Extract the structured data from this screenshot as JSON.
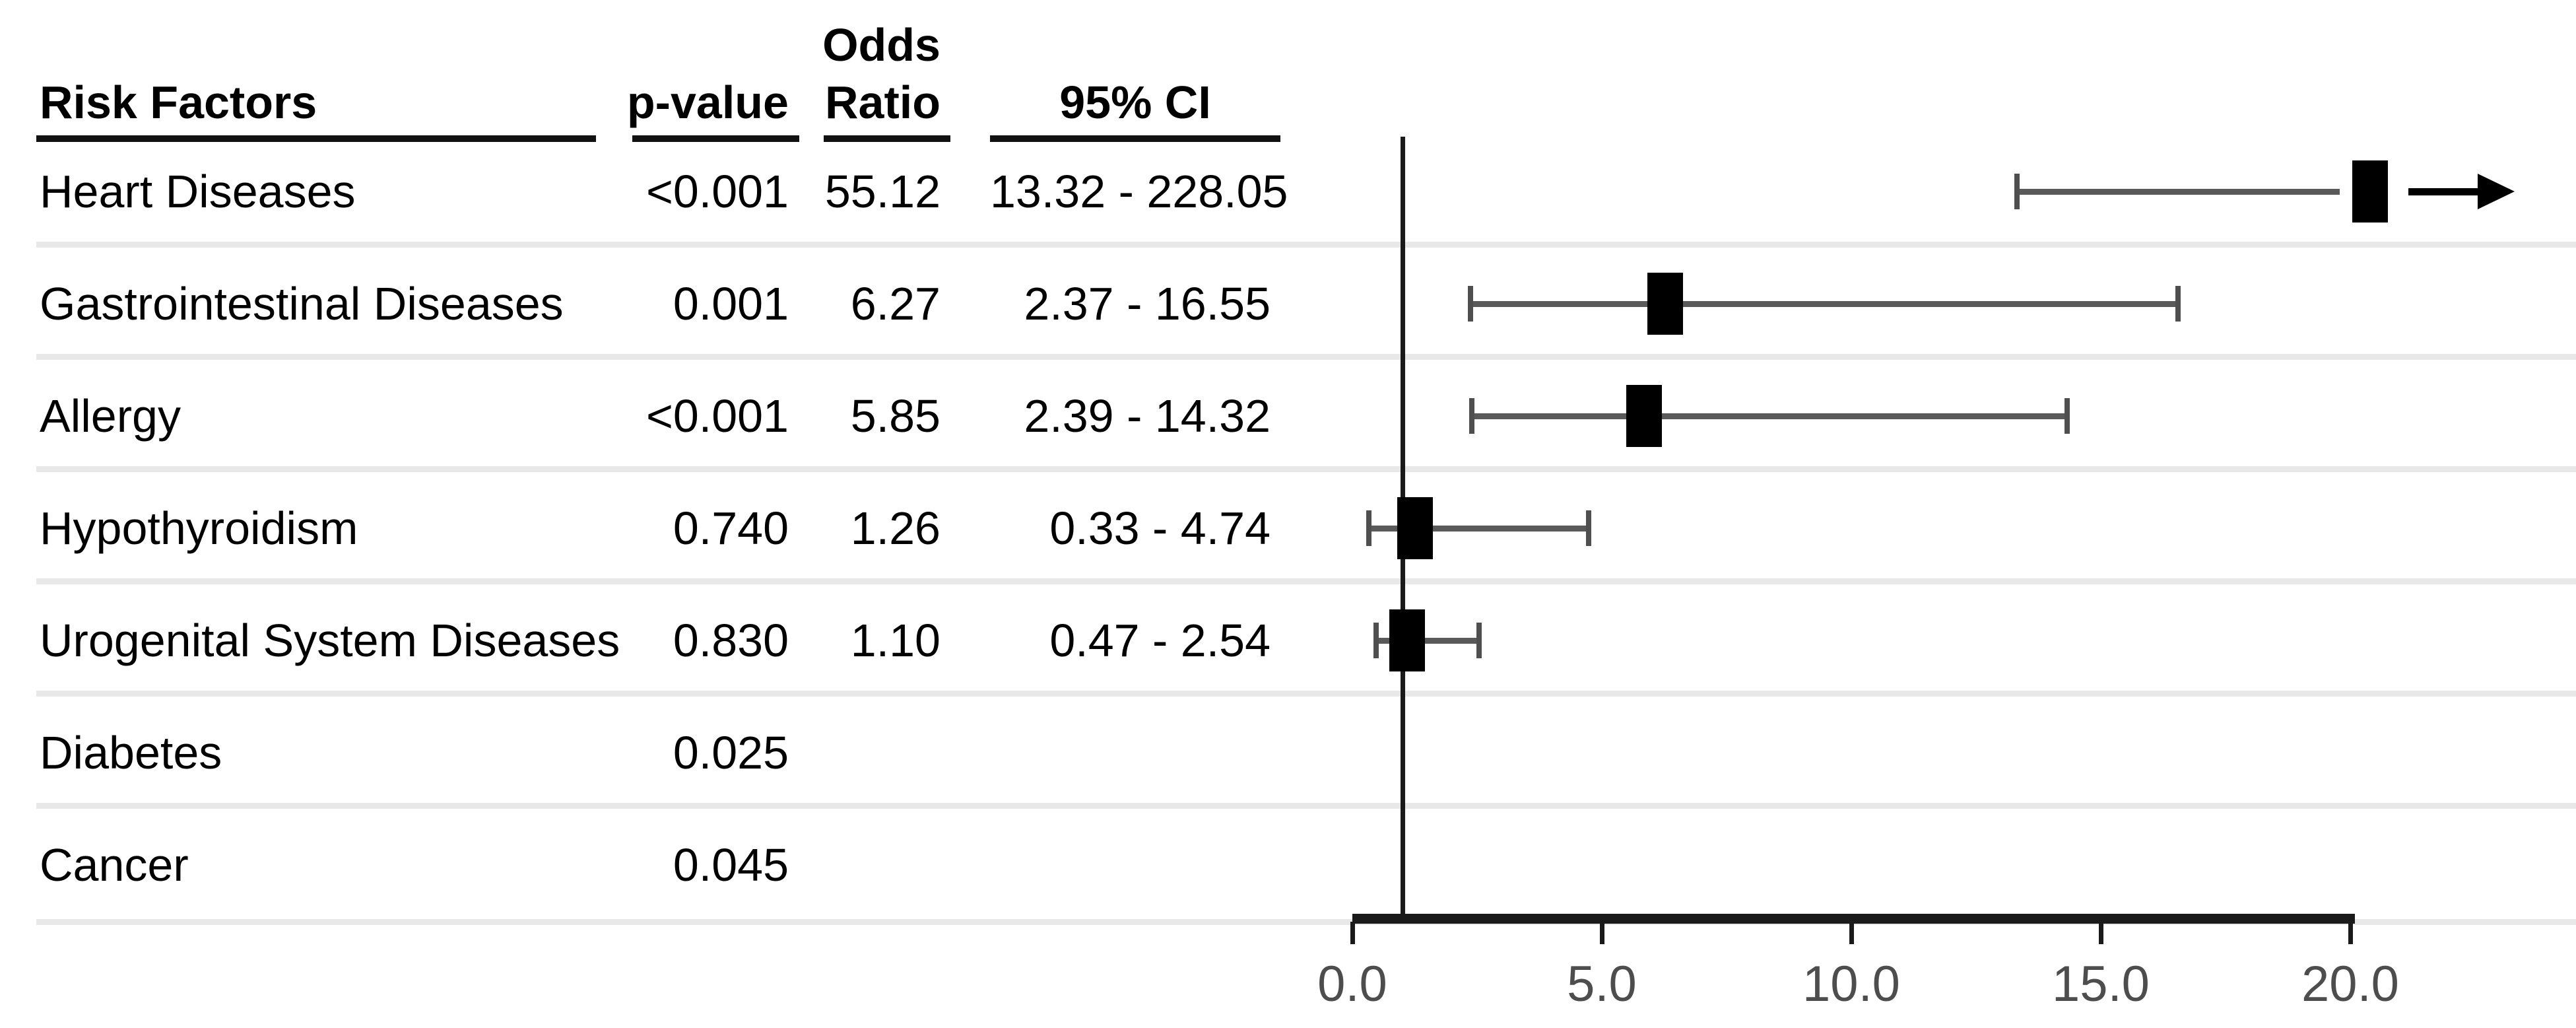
{
  "table": {
    "columns": {
      "risk": "Risk Factors",
      "p": "p-value",
      "or_line1": "Odds",
      "or_line2": "Ratio",
      "ci": "95% CI"
    },
    "rows": [
      {
        "name": "Heart Diseases",
        "p": "<0.001",
        "or": "55.12",
        "ci": "13.32 - 228.05"
      },
      {
        "name": "Gastrointestinal Diseases",
        "p": "0.001",
        "or": "6.27",
        "ci": "2.37 - 16.55"
      },
      {
        "name": "Allergy",
        "p": "<0.001",
        "or": "5.85",
        "ci": "2.39 - 14.32"
      },
      {
        "name": "Hypothyroidism",
        "p": "0.740",
        "or": "1.26",
        "ci": "0.33 - 4.74"
      },
      {
        "name": "Urogenital System Diseases",
        "p": "0.830",
        "or": "1.10",
        "ci": "0.47 - 2.54"
      },
      {
        "name": "Diabetes",
        "p": "0.025",
        "or": "",
        "ci": ""
      },
      {
        "name": "Cancer",
        "p": "0.045",
        "or": "",
        "ci": ""
      }
    ]
  },
  "chart_data": {
    "type": "scatter",
    "variant": "forest-plot-odds-ratio",
    "title": "",
    "xlabel": "",
    "ylabel": "",
    "grid": "row-separators-only",
    "axis_range": [
      0,
      20
    ],
    "x_tick_values": [
      0,
      5,
      10,
      15,
      20
    ],
    "x_tick_labels": [
      "0.0",
      "5.0",
      "10.0",
      "15.0",
      "20.0"
    ],
    "reference_line": 1.0,
    "points": [
      {
        "label": "Heart Diseases",
        "p_value": "<0.001",
        "odds_ratio": 55.12,
        "ci_low": 13.32,
        "ci_high": 228.05,
        "truncated": true,
        "marker_capped_at": 20.4
      },
      {
        "label": "Gastrointestinal Diseases",
        "p_value": "0.001",
        "odds_ratio": 6.27,
        "ci_low": 2.37,
        "ci_high": 16.55,
        "truncated": false
      },
      {
        "label": "Allergy",
        "p_value": "<0.001",
        "odds_ratio": 5.85,
        "ci_low": 2.39,
        "ci_high": 14.32,
        "truncated": false
      },
      {
        "label": "Hypothyroidism",
        "p_value": "0.740",
        "odds_ratio": 1.26,
        "ci_low": 0.33,
        "ci_high": 4.74,
        "truncated": false
      },
      {
        "label": "Urogenital System Diseases",
        "p_value": "0.830",
        "odds_ratio": 1.1,
        "ci_low": 0.47,
        "ci_high": 2.54,
        "truncated": false
      },
      {
        "label": "Diabetes",
        "p_value": "0.025",
        "odds_ratio": null,
        "ci_low": null,
        "ci_high": null,
        "truncated": false
      },
      {
        "label": "Cancer",
        "p_value": "0.045",
        "odds_ratio": null,
        "ci_low": null,
        "ci_high": null,
        "truncated": false
      }
    ]
  }
}
